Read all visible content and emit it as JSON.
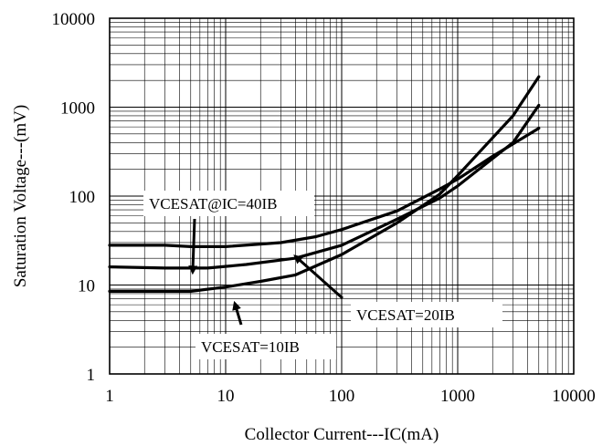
{
  "chart_data": {
    "type": "line",
    "xlabel": "Collector Current---IC(mA)",
    "ylabel": "Saturation Voltage---(mV)",
    "xscale": "log",
    "yscale": "log",
    "xlim": [
      1,
      10000
    ],
    "ylim": [
      1,
      10000
    ],
    "x_ticks": [
      "1",
      "10",
      "100",
      "1000",
      "10000"
    ],
    "y_ticks": [
      "1",
      "10",
      "100",
      "1000",
      "10000"
    ],
    "grid": true,
    "series": [
      {
        "name": "VCESAT@IC=40IB",
        "x": [
          1,
          3,
          5,
          10,
          30,
          60,
          100,
          300,
          700,
          1000,
          2000,
          5000
        ],
        "y": [
          28,
          28,
          27,
          27,
          30,
          35,
          42,
          68,
          120,
          155,
          280,
          580
        ]
      },
      {
        "name": "VCESAT=20IB",
        "x": [
          1,
          3,
          7,
          15,
          40,
          100,
          300,
          700,
          1000,
          3000,
          5000
        ],
        "y": [
          16,
          15.5,
          15.5,
          17,
          20,
          28,
          55,
          95,
          130,
          400,
          1050
        ]
      },
      {
        "name": "VCESAT=10IB",
        "x": [
          1,
          5,
          10,
          20,
          40,
          100,
          300,
          700,
          1000,
          3000,
          5000
        ],
        "y": [
          8.5,
          8.5,
          9.5,
          11,
          13,
          22,
          50,
          105,
          170,
          800,
          2200
        ]
      }
    ],
    "annotations": [
      {
        "text": "VCESAT@IC=40IB",
        "tip": [
          5.2,
          14
        ]
      },
      {
        "text": "VCESAT=20IB",
        "tip": [
          40,
          21
        ]
      },
      {
        "text": "VCESAT=10IB",
        "tip": [
          12,
          6.2
        ]
      }
    ]
  }
}
